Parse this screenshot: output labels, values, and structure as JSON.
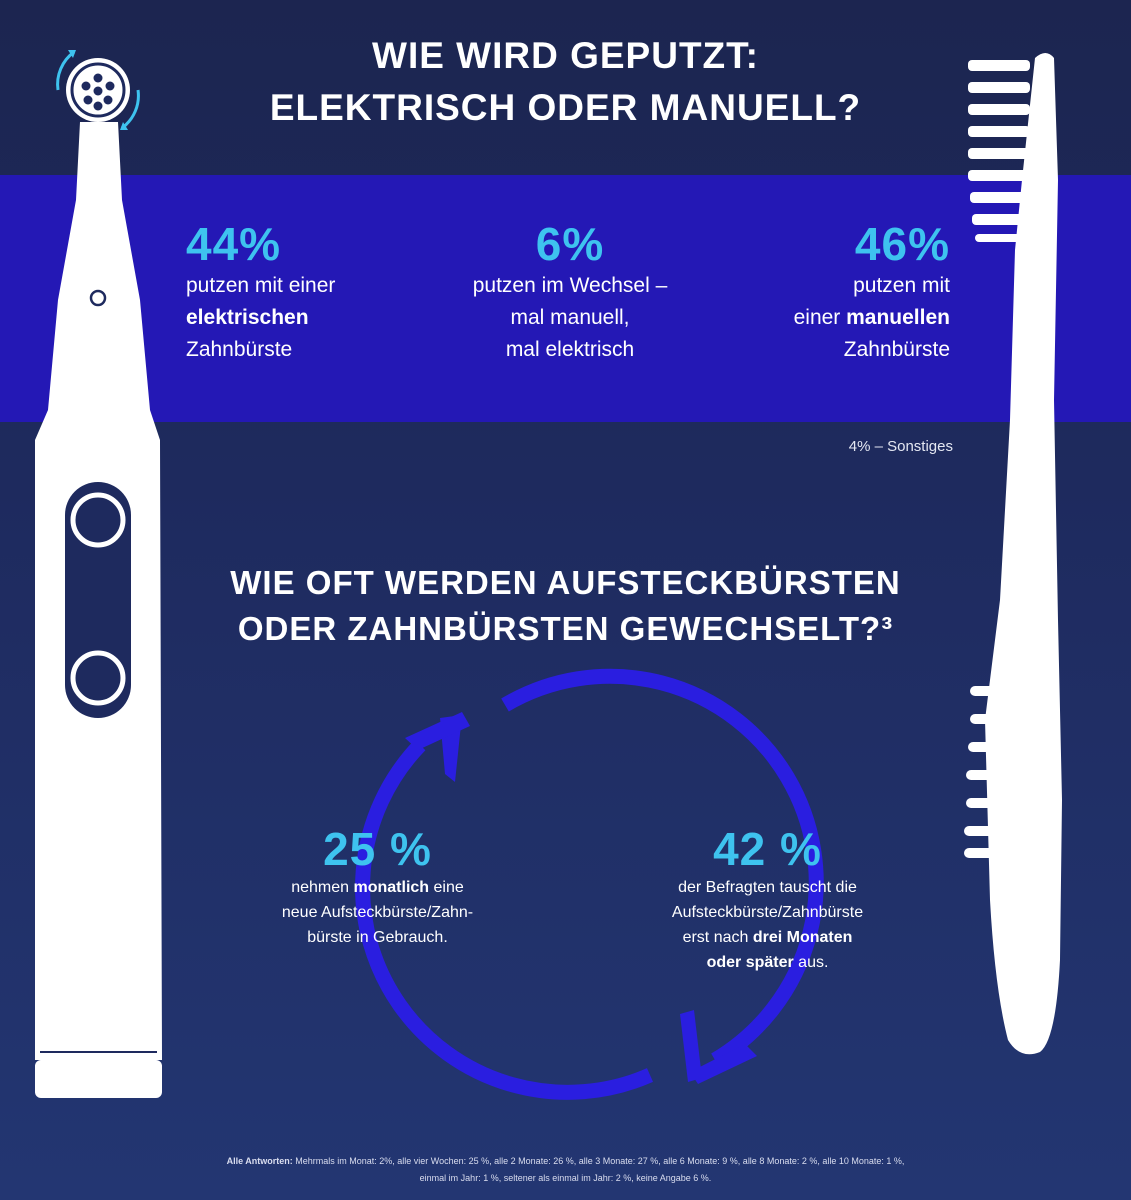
{
  "title": {
    "line1": "WIE WIRD GEPUTZT:",
    "line2": "ELEKTRISCH ODER MANUELL?"
  },
  "stats": [
    {
      "percent": "44%",
      "line1": "putzen mit einer",
      "bold": "elektrischen",
      "line3": "Zahnbürste"
    },
    {
      "percent": "6%",
      "line1": "putzen im Wechsel –",
      "line2": "mal manuell,",
      "line3": "mal elektrisch"
    },
    {
      "percent": "46%",
      "line1": "putzen mit",
      "line2_pre": "einer ",
      "bold": "manuellen",
      "line3": "Zahnbürste"
    }
  ],
  "other": "4% – Sonstiges",
  "subtitle": {
    "line1": "WIE OFT WERDEN AUFSTECKBÜRSTEN",
    "line2": "ODER ZAHNBÜRSTEN GEWECHSELT?³"
  },
  "cycle_left": {
    "percent": "25 %",
    "pre": "nehmen ",
    "bold": "monatlich",
    "post": " eine",
    "line2": "neue Aufsteckbürste/Zahn-",
    "line3": "bürste in Gebrauch."
  },
  "cycle_right": {
    "percent": "42 %",
    "line1": "der Befragten tauscht die",
    "line2": "Aufsteckbürste/Zahnbürste",
    "line3_pre": "erst nach ",
    "bold1": "drei Monaten",
    "bold2": "oder später",
    "line4_post": " aus."
  },
  "footnote": {
    "label": "Alle Antworten:",
    "line1": " Mehrmals im Monat: 2%, alle vier Wochen: 25 %, alle 2 Monate: 26 %, alle 3 Monate: 27 %, alle 6 Monate: 9 %, alle 8 Monate: 2 %, alle 10 Monate: 1 %,",
    "line2": "einmal im Jahr: 1 %, seltener als einmal im Jahr: 2 %, keine Angabe 6 %."
  },
  "colors": {
    "background": "#1e2a5e",
    "band": "#2418b5",
    "accent": "#3ec3ef",
    "cycle_arrow": "#2a1ee0"
  },
  "icons": [
    "electric-toothbrush-icon",
    "manual-toothbrush-icon",
    "cycle-arrows-icon"
  ]
}
